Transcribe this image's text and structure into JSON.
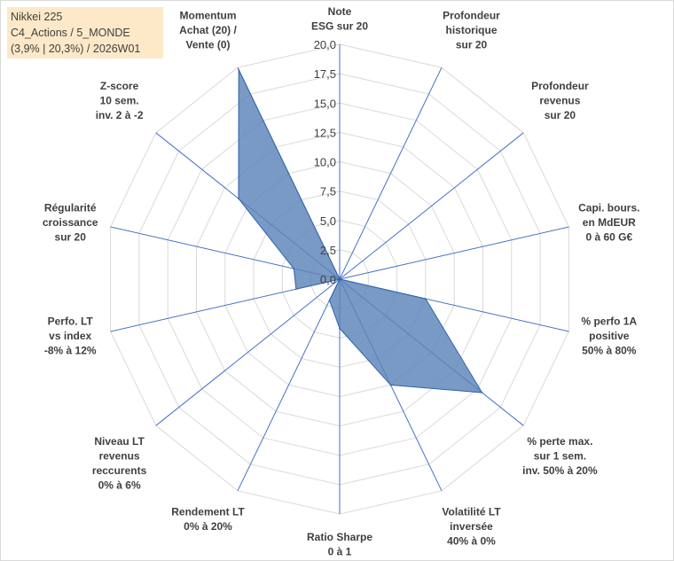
{
  "info": {
    "line1": "Nikkei 225",
    "line2": "C4_Actions / 5_MONDE",
    "line3": "(3,9% | 20,3%) / 2026W01"
  },
  "colors": {
    "fill": "#5b84b8",
    "stroke": "#2e62ad",
    "grid": "#d9d9d9",
    "spoke": "#4472c4",
    "text": "#404040",
    "info_bg": "#fde9c8"
  },
  "chart_data": {
    "type": "radar",
    "rmin": 0,
    "rmax": 20,
    "tick_step": 2.5,
    "tick_labels": [
      "0,0",
      "2,5",
      "5,0",
      "7,5",
      "10,0",
      "12,5",
      "15,0",
      "17,5",
      "20,0"
    ],
    "axes": [
      [
        "Note",
        "ESG sur 20"
      ],
      [
        "Profondeur",
        "historique",
        "sur 20"
      ],
      [
        "Profondeur",
        "revenus",
        "sur 20"
      ],
      [
        "Capi. bours.",
        "en MdEUR",
        "0 à 60 G€"
      ],
      [
        "% perfo 1A",
        "positive",
        "50% à 80%"
      ],
      [
        "% perte max.",
        "sur 1 sem.",
        "inv. 50% à 20%"
      ],
      [
        "Volatilité LT",
        "inversée",
        "40% à 0%"
      ],
      [
        "Ratio Sharpe",
        "0 à 1"
      ],
      [
        "Rendement LT",
        "0% à 20%"
      ],
      [
        "Niveau LT",
        "revenus",
        "reccurents",
        "0% à 6%"
      ],
      [
        "Perfo. LT",
        "vs index",
        "-8% à 12%"
      ],
      [
        "Régularité",
        "croissance",
        "sur 20"
      ],
      [
        "Z-score",
        "10 sem.",
        "inv. 2 à -2"
      ],
      [
        "Momentum",
        "Achat (20) /",
        "Vente (0)"
      ]
    ],
    "series": [
      {
        "name": "Nikkei 225",
        "values": [
          0,
          0,
          0,
          0,
          7.5,
          15.5,
          10.0,
          4.2,
          2.0,
          0,
          3.8,
          4.0,
          11.0,
          19.8
        ]
      }
    ]
  }
}
